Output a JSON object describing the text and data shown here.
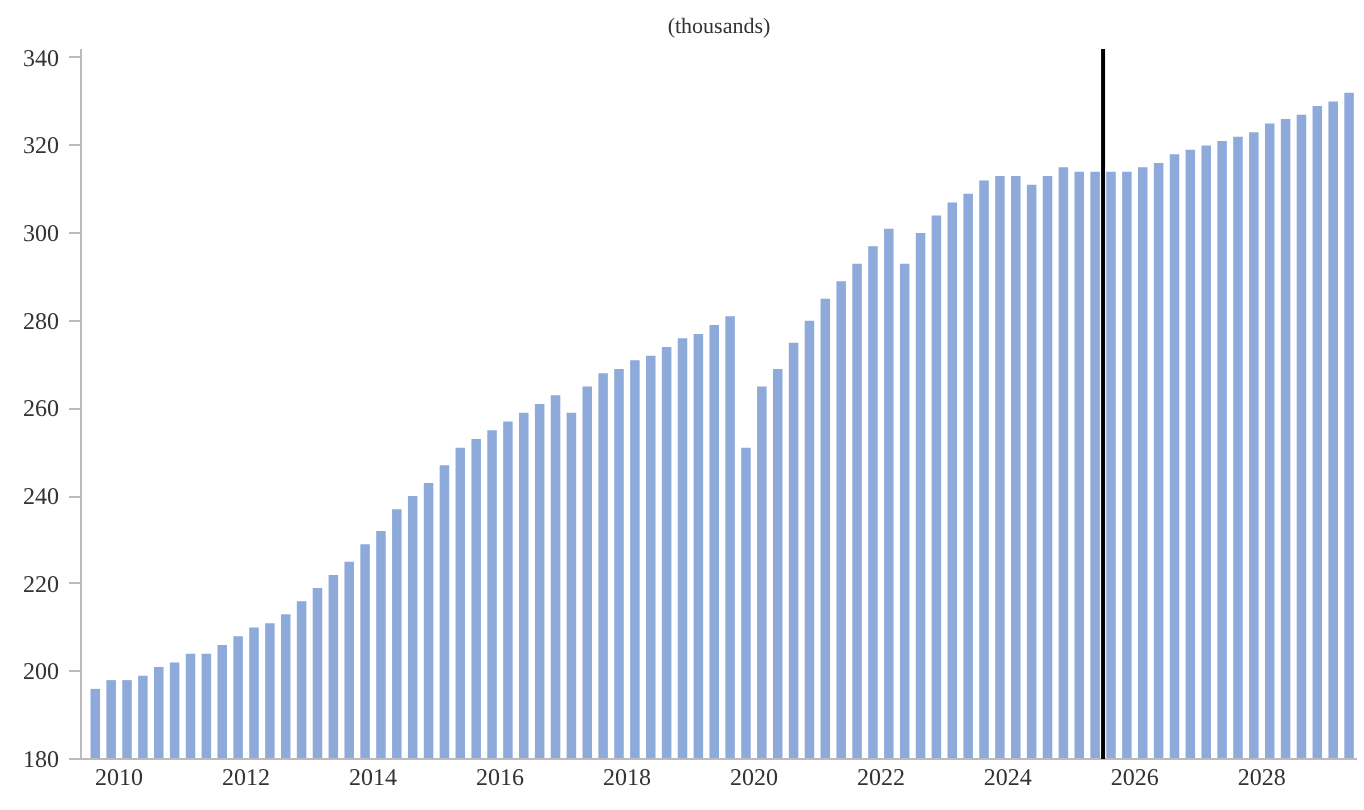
{
  "chart_data": {
    "type": "bar",
    "title": "(thousands)",
    "x": [
      2010.125,
      2010.375,
      2010.625,
      2010.875,
      2011.125,
      2011.375,
      2011.625,
      2011.875,
      2012.125,
      2012.375,
      2012.625,
      2012.875,
      2013.125,
      2013.375,
      2013.625,
      2013.875,
      2014.125,
      2014.375,
      2014.625,
      2014.875,
      2015.125,
      2015.375,
      2015.625,
      2015.875,
      2016.125,
      2016.375,
      2016.625,
      2016.875,
      2017.125,
      2017.375,
      2017.625,
      2017.875,
      2018.125,
      2018.375,
      2018.625,
      2018.875,
      2019.125,
      2019.375,
      2019.625,
      2019.875,
      2020.125,
      2020.375,
      2020.625,
      2020.875,
      2021.125,
      2021.375,
      2021.625,
      2021.875,
      2022.125,
      2022.375,
      2022.625,
      2022.875,
      2023.125,
      2023.375,
      2023.625,
      2023.875,
      2024.125,
      2024.375,
      2024.625,
      2024.875,
      2025.125,
      2025.375,
      2025.625,
      2025.875,
      2026.125,
      2026.375,
      2026.625,
      2026.875,
      2027.125,
      2027.375,
      2027.625,
      2027.875,
      2028.125,
      2028.375,
      2028.625,
      2028.875,
      2029.125,
      2029.375,
      2029.625,
      2029.875
    ],
    "values": [
      196,
      198,
      198,
      199,
      201,
      202,
      204,
      204,
      206,
      208,
      210,
      211,
      213,
      216,
      219,
      222,
      225,
      229,
      232,
      237,
      240,
      243,
      247,
      251,
      253,
      255,
      257,
      259,
      261,
      263,
      259,
      265,
      268,
      269,
      271,
      272,
      274,
      276,
      277,
      279,
      281,
      251,
      265,
      269,
      275,
      280,
      285,
      289,
      293,
      297,
      301,
      293,
      300,
      304,
      307,
      309,
      312,
      313,
      313,
      311,
      313,
      315,
      314,
      314,
      314,
      314,
      315,
      316,
      318,
      319,
      320,
      321,
      322,
      323,
      325,
      326,
      327,
      329,
      330,
      332
    ],
    "color": "#8eaadb",
    "xlim": [
      2009.9,
      2030.0
    ],
    "xticks": [
      {
        "value": 2010.5,
        "label": "2010"
      },
      {
        "value": 2012.5,
        "label": "2012"
      },
      {
        "value": 2014.5,
        "label": "2014"
      },
      {
        "value": 2016.5,
        "label": "2016"
      },
      {
        "value": 2018.5,
        "label": "2018"
      },
      {
        "value": 2020.5,
        "label": "2020"
      },
      {
        "value": 2022.5,
        "label": "2022"
      },
      {
        "value": 2024.5,
        "label": "2024"
      },
      {
        "value": 2026.5,
        "label": "2026"
      },
      {
        "value": 2028.5,
        "label": "2028"
      }
    ],
    "ylim": [
      180,
      342
    ],
    "yticks": [
      180,
      200,
      220,
      240,
      260,
      280,
      300,
      320,
      340
    ],
    "ref_lines": [
      {
        "axis": "x",
        "value": 2026.0,
        "color": "#000000"
      }
    ],
    "grid": false
  }
}
